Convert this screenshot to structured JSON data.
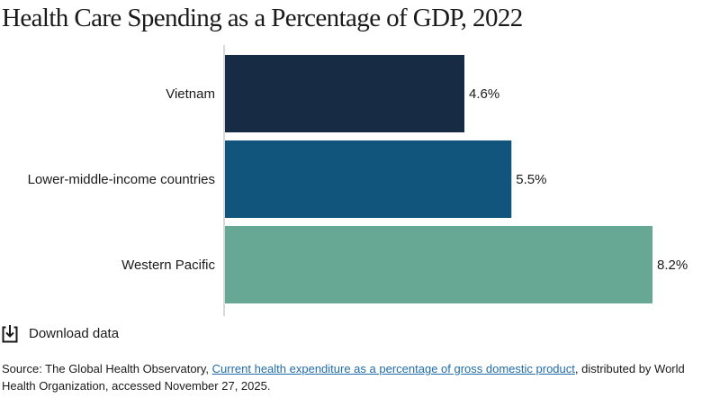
{
  "title": "Health Care Spending as a Percentage of GDP, 2022",
  "download": {
    "label": "Download data",
    "icon": "download-icon"
  },
  "source": {
    "prefix": "Source: The Global Health Observatory, ",
    "link_text": "Current health expenditure as a percentage of gross domestic product",
    "suffix": ", distributed by World Health Organization, accessed November 27, 2025."
  },
  "colors": {
    "vietnam": "#172c44",
    "lower_middle_income": "#11557c",
    "western_pacific": "#66a893",
    "axis": "#b3b3b3",
    "link": "#1f6ca8"
  },
  "chart_data": {
    "type": "bar",
    "orientation": "horizontal",
    "title": "Health Care Spending as a Percentage of GDP, 2022",
    "categories": [
      "Vietnam",
      "Lower-middle-income countries",
      "Western Pacific"
    ],
    "values": [
      4.6,
      5.5,
      8.2
    ],
    "value_labels": [
      "4.6%",
      "5.5%",
      "8.2%"
    ],
    "colors": [
      "#172c44",
      "#11557c",
      "#66a893"
    ],
    "xlim": [
      0,
      8.2
    ],
    "grid": false,
    "legend": "none"
  }
}
